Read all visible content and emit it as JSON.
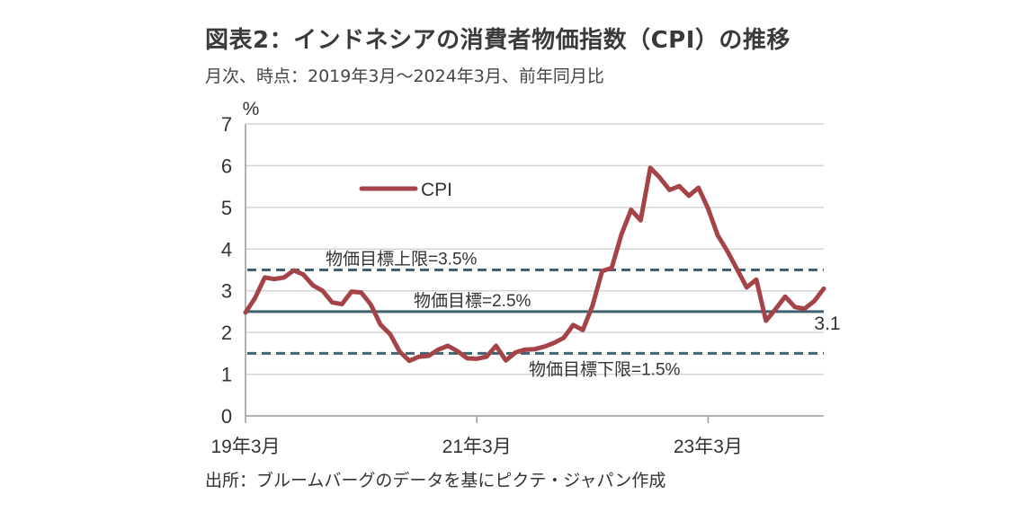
{
  "header": {
    "title": "図表2：インドネシアの消費者物価指数（CPI）の推移",
    "subtitle": "月次、時点：2019年3月～2024年3月、前年同月比"
  },
  "footer": {
    "source": "出所：ブルームバーグのデータを基にピクテ・ジャパン作成"
  },
  "colors": {
    "series": "#a54448",
    "reference": "#3f6270",
    "grid": "#d4d4d4",
    "axis": "#999999"
  },
  "chart_data": {
    "type": "line",
    "ylabel": "%",
    "ylim": [
      0,
      7
    ],
    "yticks": [
      0,
      1,
      2,
      3,
      4,
      5,
      6,
      7
    ],
    "grid": "horizontal",
    "x_tick_labels": [
      "19年3月",
      "21年3月",
      "23年3月"
    ],
    "x_tick_dates": [
      "2019-03",
      "2021-03",
      "2023-03"
    ],
    "x_range": [
      "2019-03",
      "2024-03"
    ],
    "legend": {
      "position": "upper-left",
      "entries": [
        "CPI"
      ]
    },
    "series": [
      {
        "name": "CPI",
        "x": [
          "2019-03",
          "2019-04",
          "2019-05",
          "2019-06",
          "2019-07",
          "2019-08",
          "2019-09",
          "2019-10",
          "2019-11",
          "2019-12",
          "2020-01",
          "2020-02",
          "2020-03",
          "2020-04",
          "2020-05",
          "2020-06",
          "2020-07",
          "2020-08",
          "2020-09",
          "2020-10",
          "2020-11",
          "2020-12",
          "2021-01",
          "2021-02",
          "2021-03",
          "2021-04",
          "2021-05",
          "2021-06",
          "2021-07",
          "2021-08",
          "2021-09",
          "2021-10",
          "2021-11",
          "2021-12",
          "2022-01",
          "2022-02",
          "2022-03",
          "2022-04",
          "2022-05",
          "2022-06",
          "2022-07",
          "2022-08",
          "2022-09",
          "2022-10",
          "2022-11",
          "2022-12",
          "2023-01",
          "2023-02",
          "2023-03",
          "2023-04",
          "2023-05",
          "2023-06",
          "2023-07",
          "2023-08",
          "2023-09",
          "2023-10",
          "2023-11",
          "2023-12",
          "2024-01",
          "2024-02",
          "2024-03"
        ],
        "values": [
          2.48,
          2.83,
          3.32,
          3.28,
          3.32,
          3.49,
          3.39,
          3.13,
          3.0,
          2.72,
          2.68,
          2.98,
          2.96,
          2.67,
          2.19,
          1.96,
          1.54,
          1.32,
          1.42,
          1.44,
          1.59,
          1.68,
          1.55,
          1.38,
          1.37,
          1.42,
          1.68,
          1.33,
          1.52,
          1.59,
          1.6,
          1.66,
          1.75,
          1.87,
          2.18,
          2.06,
          2.64,
          3.47,
          3.55,
          4.35,
          4.94,
          4.69,
          5.95,
          5.71,
          5.42,
          5.51,
          5.28,
          5.47,
          4.97,
          4.33,
          3.95,
          3.52,
          3.08,
          3.27,
          2.28,
          2.56,
          2.86,
          2.61,
          2.57,
          2.75,
          3.05
        ],
        "last_value_label": "3.1"
      }
    ],
    "reference_lines": [
      {
        "label": "物価目標上限=3.5%",
        "value": 3.5,
        "style": "dashed"
      },
      {
        "label": "物価目標=2.5%",
        "value": 2.5,
        "style": "solid"
      },
      {
        "label": "物価目標下限=1.5%",
        "value": 1.5,
        "style": "dashed"
      }
    ]
  }
}
